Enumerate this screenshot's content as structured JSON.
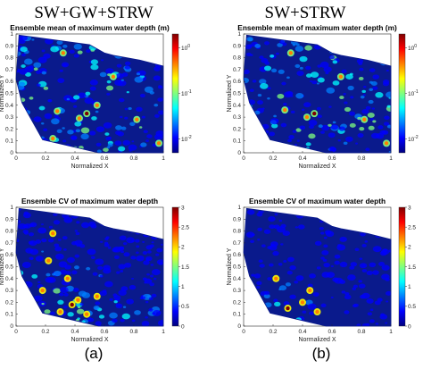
{
  "column_titles": [
    "SW+GW+STRW",
    "SW+STRW"
  ],
  "subfigure_labels": [
    "(a)",
    "(b)"
  ],
  "colors": {
    "background": "#0a1a8c",
    "cmap": [
      "#00007f",
      "#0000ff",
      "#007fff",
      "#00ffff",
      "#7fff7f",
      "#ffff00",
      "#ff7f00",
      "#ff0000",
      "#7f0000"
    ]
  },
  "chart_data": [
    {
      "type": "heatmap",
      "panel": "top-left",
      "title": "Ensemble mean of maximum water depth (m)",
      "xlabel": "Normalized X",
      "ylabel": "Normalized Y",
      "xlim": [
        0,
        1
      ],
      "ylim": [
        0,
        1
      ],
      "xticks": [
        "0",
        "0.2",
        "0.4",
        "0.6",
        "0.8",
        "1"
      ],
      "yticks": [
        "0",
        "0.1",
        "0.2",
        "0.3",
        "0.4",
        "0.5",
        "0.6",
        "0.7",
        "0.8",
        "0.9",
        "1"
      ],
      "colorbar": {
        "scale": "log",
        "range": [
          0.005,
          2
        ],
        "ticks": [
          "10^0",
          "10^-1",
          "10^-2"
        ]
      },
      "hotspots": [
        [
          0.48,
          0.33
        ],
        [
          0.28,
          0.35
        ],
        [
          0.43,
          0.29
        ],
        [
          0.55,
          0.4
        ],
        [
          0.97,
          0.08
        ],
        [
          0.66,
          0.64
        ],
        [
          0.32,
          0.84
        ],
        [
          0.25,
          0.12
        ],
        [
          0.82,
          0.28
        ]
      ]
    },
    {
      "type": "heatmap",
      "panel": "top-right",
      "title": "Ensemble mean of maximum water depth (m)",
      "xlabel": "Normalized X",
      "ylabel": "Normalized Y",
      "xlim": [
        0,
        1
      ],
      "ylim": [
        0,
        1
      ],
      "xticks": [
        "0",
        "0.2",
        "0.4",
        "0.6",
        "0.8",
        "1"
      ],
      "yticks": [
        "0",
        "0.1",
        "0.2",
        "0.3",
        "0.4",
        "0.5",
        "0.6",
        "0.7",
        "0.8",
        "0.9",
        "1"
      ],
      "colorbar": {
        "scale": "log",
        "range": [
          0.005,
          2
        ],
        "ticks": [
          "10^0",
          "10^-1",
          "10^-2"
        ]
      },
      "hotspots": [
        [
          0.48,
          0.33
        ],
        [
          0.43,
          0.3
        ],
        [
          0.97,
          0.08
        ],
        [
          0.66,
          0.64
        ],
        [
          0.28,
          0.36
        ],
        [
          0.82,
          0.28
        ],
        [
          0.32,
          0.84
        ]
      ]
    },
    {
      "type": "heatmap",
      "panel": "bottom-left",
      "title": "Ensemble CV of maximum water depth",
      "xlabel": "Normalized X",
      "ylabel": "Normalized Y",
      "xlim": [
        0,
        1
      ],
      "ylim": [
        0,
        1
      ],
      "xticks": [
        "0",
        "0.2",
        "0.4",
        "0.6",
        "0.8",
        "1"
      ],
      "yticks": [
        "0",
        "0.1",
        "0.2",
        "0.3",
        "0.4",
        "0.5",
        "0.6",
        "0.7",
        "0.8",
        "0.9",
        "1"
      ],
      "colorbar": {
        "scale": "linear",
        "range": [
          0,
          3
        ],
        "ticks": [
          "0",
          "0.5",
          "1",
          "1.5",
          "2",
          "2.5",
          "3"
        ]
      },
      "hotspots": [
        [
          0.38,
          0.18
        ],
        [
          0.42,
          0.22
        ],
        [
          0.3,
          0.12
        ],
        [
          0.22,
          0.55
        ],
        [
          0.25,
          0.78
        ],
        [
          0.48,
          0.1
        ],
        [
          0.55,
          0.25
        ],
        [
          0.35,
          0.4
        ],
        [
          0.18,
          0.3
        ]
      ]
    },
    {
      "type": "heatmap",
      "panel": "bottom-right",
      "title": "Ensemble CV of maximum water depth",
      "xlabel": "Normalized X",
      "ylabel": "Normalized Y",
      "xlim": [
        0,
        1
      ],
      "ylim": [
        0,
        1
      ],
      "xticks": [
        "0",
        "0.2",
        "0.4",
        "0.6",
        "0.8",
        "1"
      ],
      "yticks": [
        "0",
        "0.1",
        "0.2",
        "0.3",
        "0.4",
        "0.5",
        "0.6",
        "0.7",
        "0.8",
        "0.9",
        "1"
      ],
      "colorbar": {
        "scale": "linear",
        "range": [
          0,
          3
        ],
        "ticks": [
          "0",
          "0.5",
          "1",
          "1.5",
          "2",
          "2.5",
          "3"
        ]
      },
      "hotspots": [
        [
          0.3,
          0.15
        ],
        [
          0.4,
          0.2
        ],
        [
          0.22,
          0.4
        ],
        [
          0.5,
          0.12
        ],
        [
          0.45,
          0.3
        ]
      ]
    }
  ]
}
